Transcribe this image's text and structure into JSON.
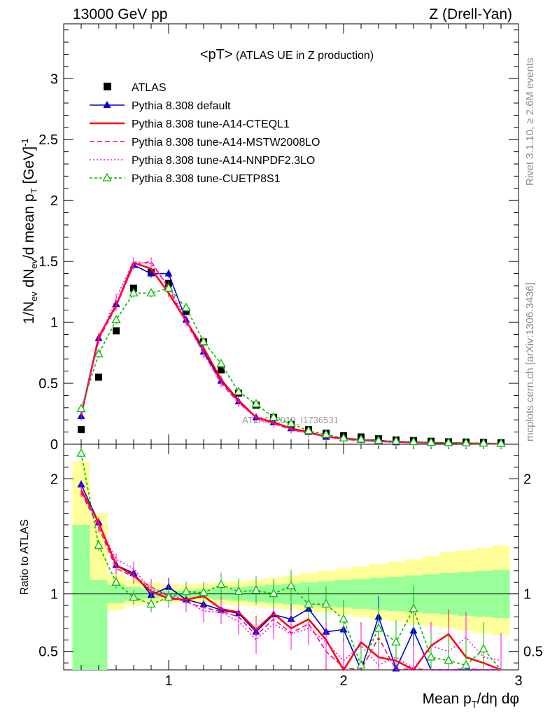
{
  "header": {
    "left": "13000 GeV pp",
    "right": "Z (Drell-Yan)",
    "plot_title_main": "<pT>",
    "plot_title_sub": " (ATLAS UE in Z production)",
    "side_label_top": "Rivet 3.1.10, ≥ 2.6M events",
    "side_label_bottom": "mcplots.cern.ch [arXiv:1306.3436]",
    "watermark": "ATLAS_2019_I1736531"
  },
  "chart_data": {
    "type": "scatter",
    "xlabel": "Mean pT/dη dφ",
    "ylabel_main": "1/Nev dNev/d mean pT [GeV]-1",
    "ylabel_ratio": "Ratio to ATLAS",
    "xlim": [
      0.4,
      3.0
    ],
    "ylim_main": [
      0,
      3.45
    ],
    "ylim_ratio": [
      0.34,
      2.3
    ],
    "xticks": [
      "1",
      "2",
      "3"
    ],
    "yticks_main": [
      "0",
      "0.5",
      "1",
      "1.5",
      "2",
      "2.5",
      "3"
    ],
    "yticks_ratio": [
      "0.5",
      "1",
      "2"
    ],
    "x": [
      0.5,
      0.6,
      0.7,
      0.8,
      0.9,
      1.0,
      1.1,
      1.2,
      1.3,
      1.4,
      1.5,
      1.6,
      1.7,
      1.8,
      1.9,
      2.0,
      2.1,
      2.2,
      2.3,
      2.4,
      2.5,
      2.6,
      2.7,
      2.8,
      2.9
    ],
    "series": [
      {
        "name": "ATLAS",
        "color": "#000000",
        "dash": "",
        "marker": "square",
        "values": [
          0.12,
          0.55,
          0.93,
          1.28,
          1.41,
          1.32,
          1.09,
          0.84,
          0.61,
          0.42,
          0.32,
          0.22,
          0.16,
          0.12,
          0.09,
          0.07,
          0.06,
          0.045,
          0.035,
          0.03,
          0.025,
          0.02,
          0.018,
          0.015,
          0.012
        ],
        "ratio": [
          1,
          1,
          1,
          1,
          1,
          1,
          1,
          1,
          1,
          1,
          1,
          1,
          1,
          1,
          1,
          1,
          1,
          1,
          1,
          1,
          1,
          1,
          1,
          1,
          1
        ]
      },
      {
        "name": "Pythia 8.308 default",
        "color": "#0000cc",
        "dash": "",
        "marker": "triangle",
        "values": [
          0.23,
          0.87,
          1.15,
          1.47,
          1.4,
          1.4,
          1.02,
          0.76,
          0.52,
          0.35,
          0.22,
          0.18,
          0.13,
          0.1,
          0.06,
          0.05,
          0.035,
          0.035,
          0.015,
          0.02,
          0.01,
          0.008,
          0.006,
          0.005,
          0.004
        ],
        "ratio": [
          1.95,
          1.62,
          1.25,
          1.18,
          0.99,
          1.06,
          0.95,
          0.91,
          0.86,
          0.83,
          0.67,
          0.82,
          0.78,
          0.87,
          0.67,
          0.69,
          0.25,
          0.8,
          0.35,
          0.68,
          0.3,
          0.25,
          0.22,
          0.2,
          0.2
        ]
      },
      {
        "name": "Pythia 8.308 tune-A14-CTEQL1",
        "color": "#ff0000",
        "dash": "",
        "marker": "none",
        "values": [
          0.24,
          0.88,
          1.14,
          1.49,
          1.44,
          1.24,
          1.01,
          0.79,
          0.53,
          0.36,
          0.22,
          0.18,
          0.13,
          0.1,
          0.06,
          0.05,
          0.035,
          0.025,
          0.02,
          0.015,
          0.012,
          0.01,
          0.008,
          0.006,
          0.004
        ],
        "ratio": [
          1.9,
          1.62,
          1.25,
          1.16,
          1.02,
          0.96,
          0.95,
          0.98,
          0.87,
          0.84,
          0.69,
          0.83,
          0.7,
          0.78,
          0.6,
          0.32,
          0.58,
          0.45,
          0.42,
          0.3,
          0.55,
          0.65,
          0.45,
          0.4,
          0.3
        ]
      },
      {
        "name": "Pythia 8.308 tune-A14-MSTW2008LO",
        "color": "#ff0080",
        "dash": "7,4",
        "marker": "none",
        "values": [
          0.25,
          0.86,
          1.13,
          1.47,
          1.5,
          1.28,
          1.0,
          0.75,
          0.5,
          0.34,
          0.22,
          0.17,
          0.12,
          0.09,
          0.06,
          0.04,
          0.03,
          0.025,
          0.02,
          0.015,
          0.01,
          0.008,
          0.006,
          0.004,
          0.003
        ],
        "ratio": [
          1.88,
          1.58,
          1.22,
          1.15,
          1.06,
          0.98,
          0.93,
          0.88,
          0.85,
          0.8,
          0.64,
          0.78,
          0.66,
          0.74,
          0.5,
          0.36,
          0.28,
          0.62,
          0.3,
          0.35,
          0.28,
          0.3,
          0.35,
          0.28,
          0.25
        ]
      },
      {
        "name": "Pythia 8.308 tune-A14-NNPDF2.3LO",
        "color": "#ff00ff",
        "dash": "2,3",
        "marker": "none",
        "values": [
          0.24,
          0.85,
          1.2,
          1.5,
          1.48,
          1.3,
          1.02,
          0.74,
          0.51,
          0.35,
          0.21,
          0.17,
          0.12,
          0.09,
          0.06,
          0.04,
          0.03,
          0.02,
          0.015,
          0.012,
          0.01,
          0.008,
          0.006,
          0.005,
          0.004
        ],
        "ratio": [
          1.92,
          1.6,
          1.3,
          1.22,
          1.03,
          1.0,
          0.94,
          0.85,
          0.84,
          0.76,
          0.6,
          0.74,
          0.65,
          0.7,
          0.58,
          0.42,
          0.55,
          0.38,
          0.45,
          0.35,
          0.55,
          0.5,
          0.62,
          0.45,
          0.42
        ]
      },
      {
        "name": "Pythia 8.308 tune-CUETP8S1",
        "color": "#00bb00",
        "dash": "4,3",
        "marker": "open-triangle",
        "values": [
          0.29,
          0.74,
          1.02,
          1.24,
          1.24,
          1.28,
          1.12,
          0.84,
          0.66,
          0.43,
          0.33,
          0.22,
          0.17,
          0.11,
          0.08,
          0.05,
          0.04,
          0.03,
          0.025,
          0.02,
          0.015,
          0.012,
          0.01,
          0.008,
          0.006
        ],
        "ratio": [
          2.22,
          1.42,
          1.1,
          0.97,
          0.91,
          0.97,
          1.02,
          1.01,
          1.08,
          1.02,
          1.03,
          1.0,
          1.07,
          0.91,
          0.91,
          0.78,
          0.38,
          0.7,
          0.58,
          0.87,
          0.45,
          0.42,
          0.38,
          0.52,
          0.3
        ]
      }
    ],
    "bands": {
      "inner_color": "#99ff99",
      "outer_color": "#ffff99",
      "inner": [
        [
          0.34,
          1.6
        ],
        [
          0.34,
          1.12
        ],
        [
          0.92,
          1.08
        ],
        [
          0.94,
          1.06
        ],
        [
          0.96,
          1.04
        ],
        [
          0.97,
          1.03
        ],
        [
          0.97,
          1.03
        ],
        [
          0.96,
          1.04
        ],
        [
          0.95,
          1.05
        ],
        [
          0.94,
          1.06
        ],
        [
          0.93,
          1.07
        ],
        [
          0.92,
          1.08
        ],
        [
          0.91,
          1.09
        ],
        [
          0.9,
          1.1
        ],
        [
          0.89,
          1.11
        ],
        [
          0.88,
          1.12
        ],
        [
          0.87,
          1.13
        ],
        [
          0.86,
          1.14
        ],
        [
          0.85,
          1.15
        ],
        [
          0.84,
          1.16
        ],
        [
          0.83,
          1.17
        ],
        [
          0.82,
          1.18
        ],
        [
          0.81,
          1.19
        ],
        [
          0.8,
          1.2
        ],
        [
          0.79,
          1.21
        ]
      ],
      "outer": [
        [
          0.34,
          2.15
        ],
        [
          0.8,
          1.7
        ],
        [
          0.86,
          1.17
        ],
        [
          0.9,
          1.12
        ],
        [
          0.92,
          1.1
        ],
        [
          0.93,
          1.08
        ],
        [
          0.93,
          1.08
        ],
        [
          0.92,
          1.09
        ],
        [
          0.91,
          1.1
        ],
        [
          0.9,
          1.11
        ],
        [
          0.89,
          1.12
        ],
        [
          0.88,
          1.14
        ],
        [
          0.86,
          1.16
        ],
        [
          0.85,
          1.18
        ],
        [
          0.84,
          1.2
        ],
        [
          0.82,
          1.22
        ],
        [
          0.8,
          1.24
        ],
        [
          0.78,
          1.26
        ],
        [
          0.76,
          1.28
        ],
        [
          0.74,
          1.3
        ],
        [
          0.72,
          1.33
        ],
        [
          0.7,
          1.36
        ],
        [
          0.68,
          1.38
        ],
        [
          0.66,
          1.4
        ],
        [
          0.64,
          1.42
        ]
      ]
    }
  }
}
